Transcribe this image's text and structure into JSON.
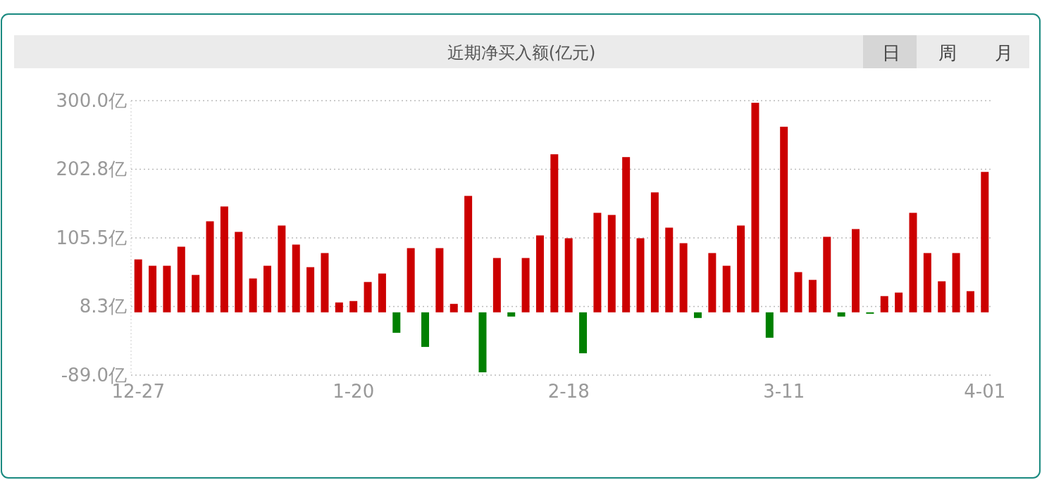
{
  "chart_data": {
    "type": "bar",
    "title": "近期净买入额(亿元)",
    "annotations": [
      "日",
      "周",
      "月"
    ],
    "categories": [
      "12-27",
      null,
      null,
      null,
      null,
      null,
      null,
      null,
      null,
      null,
      null,
      null,
      null,
      null,
      null,
      "1-20",
      null,
      null,
      null,
      null,
      null,
      null,
      null,
      null,
      null,
      null,
      null,
      null,
      null,
      null,
      "2-18",
      null,
      null,
      null,
      null,
      null,
      null,
      null,
      null,
      null,
      null,
      null,
      null,
      null,
      null,
      "3-11",
      null,
      null,
      null,
      null,
      null,
      null,
      null,
      null,
      null,
      null,
      null,
      null,
      null,
      "4-01"
    ],
    "values": [
      75,
      66,
      66,
      93,
      53,
      129,
      150,
      114,
      48,
      66,
      123,
      96,
      64,
      84,
      14,
      16,
      43,
      55,
      -29,
      91,
      -49,
      91,
      12,
      165,
      -85,
      77,
      -6,
      77,
      109,
      224,
      105,
      -58,
      141,
      138,
      220,
      105,
      170,
      120,
      98,
      -8,
      84,
      66,
      123,
      297,
      -36,
      263,
      57,
      46,
      107,
      -6,
      118,
      -2,
      23,
      28,
      141,
      84,
      44,
      84,
      30,
      199
    ],
    "colors": [
      "#cc0000",
      "#cc0000",
      "#cc0000",
      "#cc0000",
      "#cc0000",
      "#cc0000",
      "#cc0000",
      "#cc0000",
      "#cc0000",
      "#cc0000",
      "#cc0000",
      "#cc0000",
      "#cc0000",
      "#cc0000",
      "#cc0000",
      "#cc0000",
      "#cc0000",
      "#cc0000",
      "#008000",
      "#cc0000",
      "#008000",
      "#cc0000",
      "#cc0000",
      "#cc0000",
      "#008000",
      "#cc0000",
      "#008000",
      "#cc0000",
      "#cc0000",
      "#cc0000",
      "#cc0000",
      "#008000",
      "#cc0000",
      "#cc0000",
      "#cc0000",
      "#cc0000",
      "#cc0000",
      "#cc0000",
      "#cc0000",
      "#008000",
      "#cc0000",
      "#cc0000",
      "#cc0000",
      "#cc0000",
      "#008000",
      "#cc0000",
      "#cc0000",
      "#cc0000",
      "#cc0000",
      "#008000",
      "#cc0000",
      "#008000",
      "#cc0000",
      "#cc0000",
      "#cc0000",
      "#cc0000",
      "#cc0000",
      "#cc0000",
      "#cc0000",
      "#cc0000"
    ],
    "ylim": [
      -89,
      300
    ],
    "yticks": [
      {
        "value": 300,
        "label": "300.0亿"
      },
      {
        "value": 202.8,
        "label": "202.8亿"
      },
      {
        "value": 105.5,
        "label": "105.5亿"
      },
      {
        "value": 8.3,
        "label": "8.3亿"
      },
      {
        "value": -89,
        "label": "-89.0亿"
      }
    ],
    "grid": "y"
  }
}
